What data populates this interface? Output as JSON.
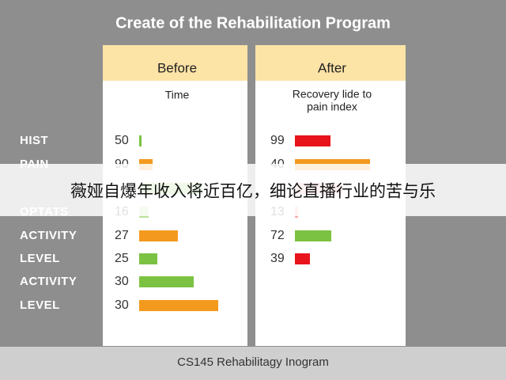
{
  "title": "Create of the Rehabilitation Program",
  "panels": [
    {
      "header": "Before",
      "subtitle": [
        "Time"
      ]
    },
    {
      "header": "After",
      "subtitle": [
        "Recovery lide to",
        "pain index"
      ]
    }
  ],
  "rows": [
    {
      "label": "HIST",
      "before": 50,
      "after": 99
    },
    {
      "label": "PAIN",
      "before": 90,
      "after": 40
    },
    {
      "label": "OPTATS",
      "before": 16,
      "after": 13
    },
    {
      "label": "ACTIVITY",
      "before": 27,
      "after": 72
    },
    {
      "label": "LEVEL",
      "before": 25,
      "after": 39
    },
    {
      "label": "ACTIVITY",
      "before": 30
    },
    {
      "label": "LEVEL",
      "before": 30
    }
  ],
  "footer": "CS145 Rehabilitagy Inogram",
  "banner": "薇娅自爆年收入将近百亿，细论直播行业的苦与乐"
}
